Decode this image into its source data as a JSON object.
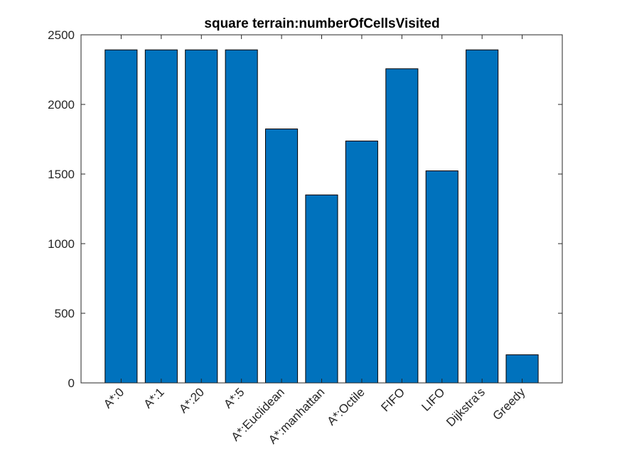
{
  "chart_data": {
    "type": "bar",
    "title": "square terrain:numberOfCellsVisited",
    "xlabel": "",
    "ylabel": "",
    "categories": [
      "A*:0",
      "A*:1",
      "A*:20",
      "A*:5",
      "A*:Euclidean",
      "A*:manhattan",
      "A*:Octile",
      "FIFO",
      "LIFO",
      "Dijkstra's",
      "Greedy"
    ],
    "values": [
      2392,
      2392,
      2392,
      2392,
      1824,
      1350,
      1737,
      2256,
      1523,
      2392,
      202
    ],
    "ylim": [
      0,
      2500
    ],
    "yticks": [
      0,
      500,
      1000,
      1500,
      2000,
      2500
    ],
    "bar_color": "#0072BD",
    "grid": false,
    "legend": "none"
  }
}
